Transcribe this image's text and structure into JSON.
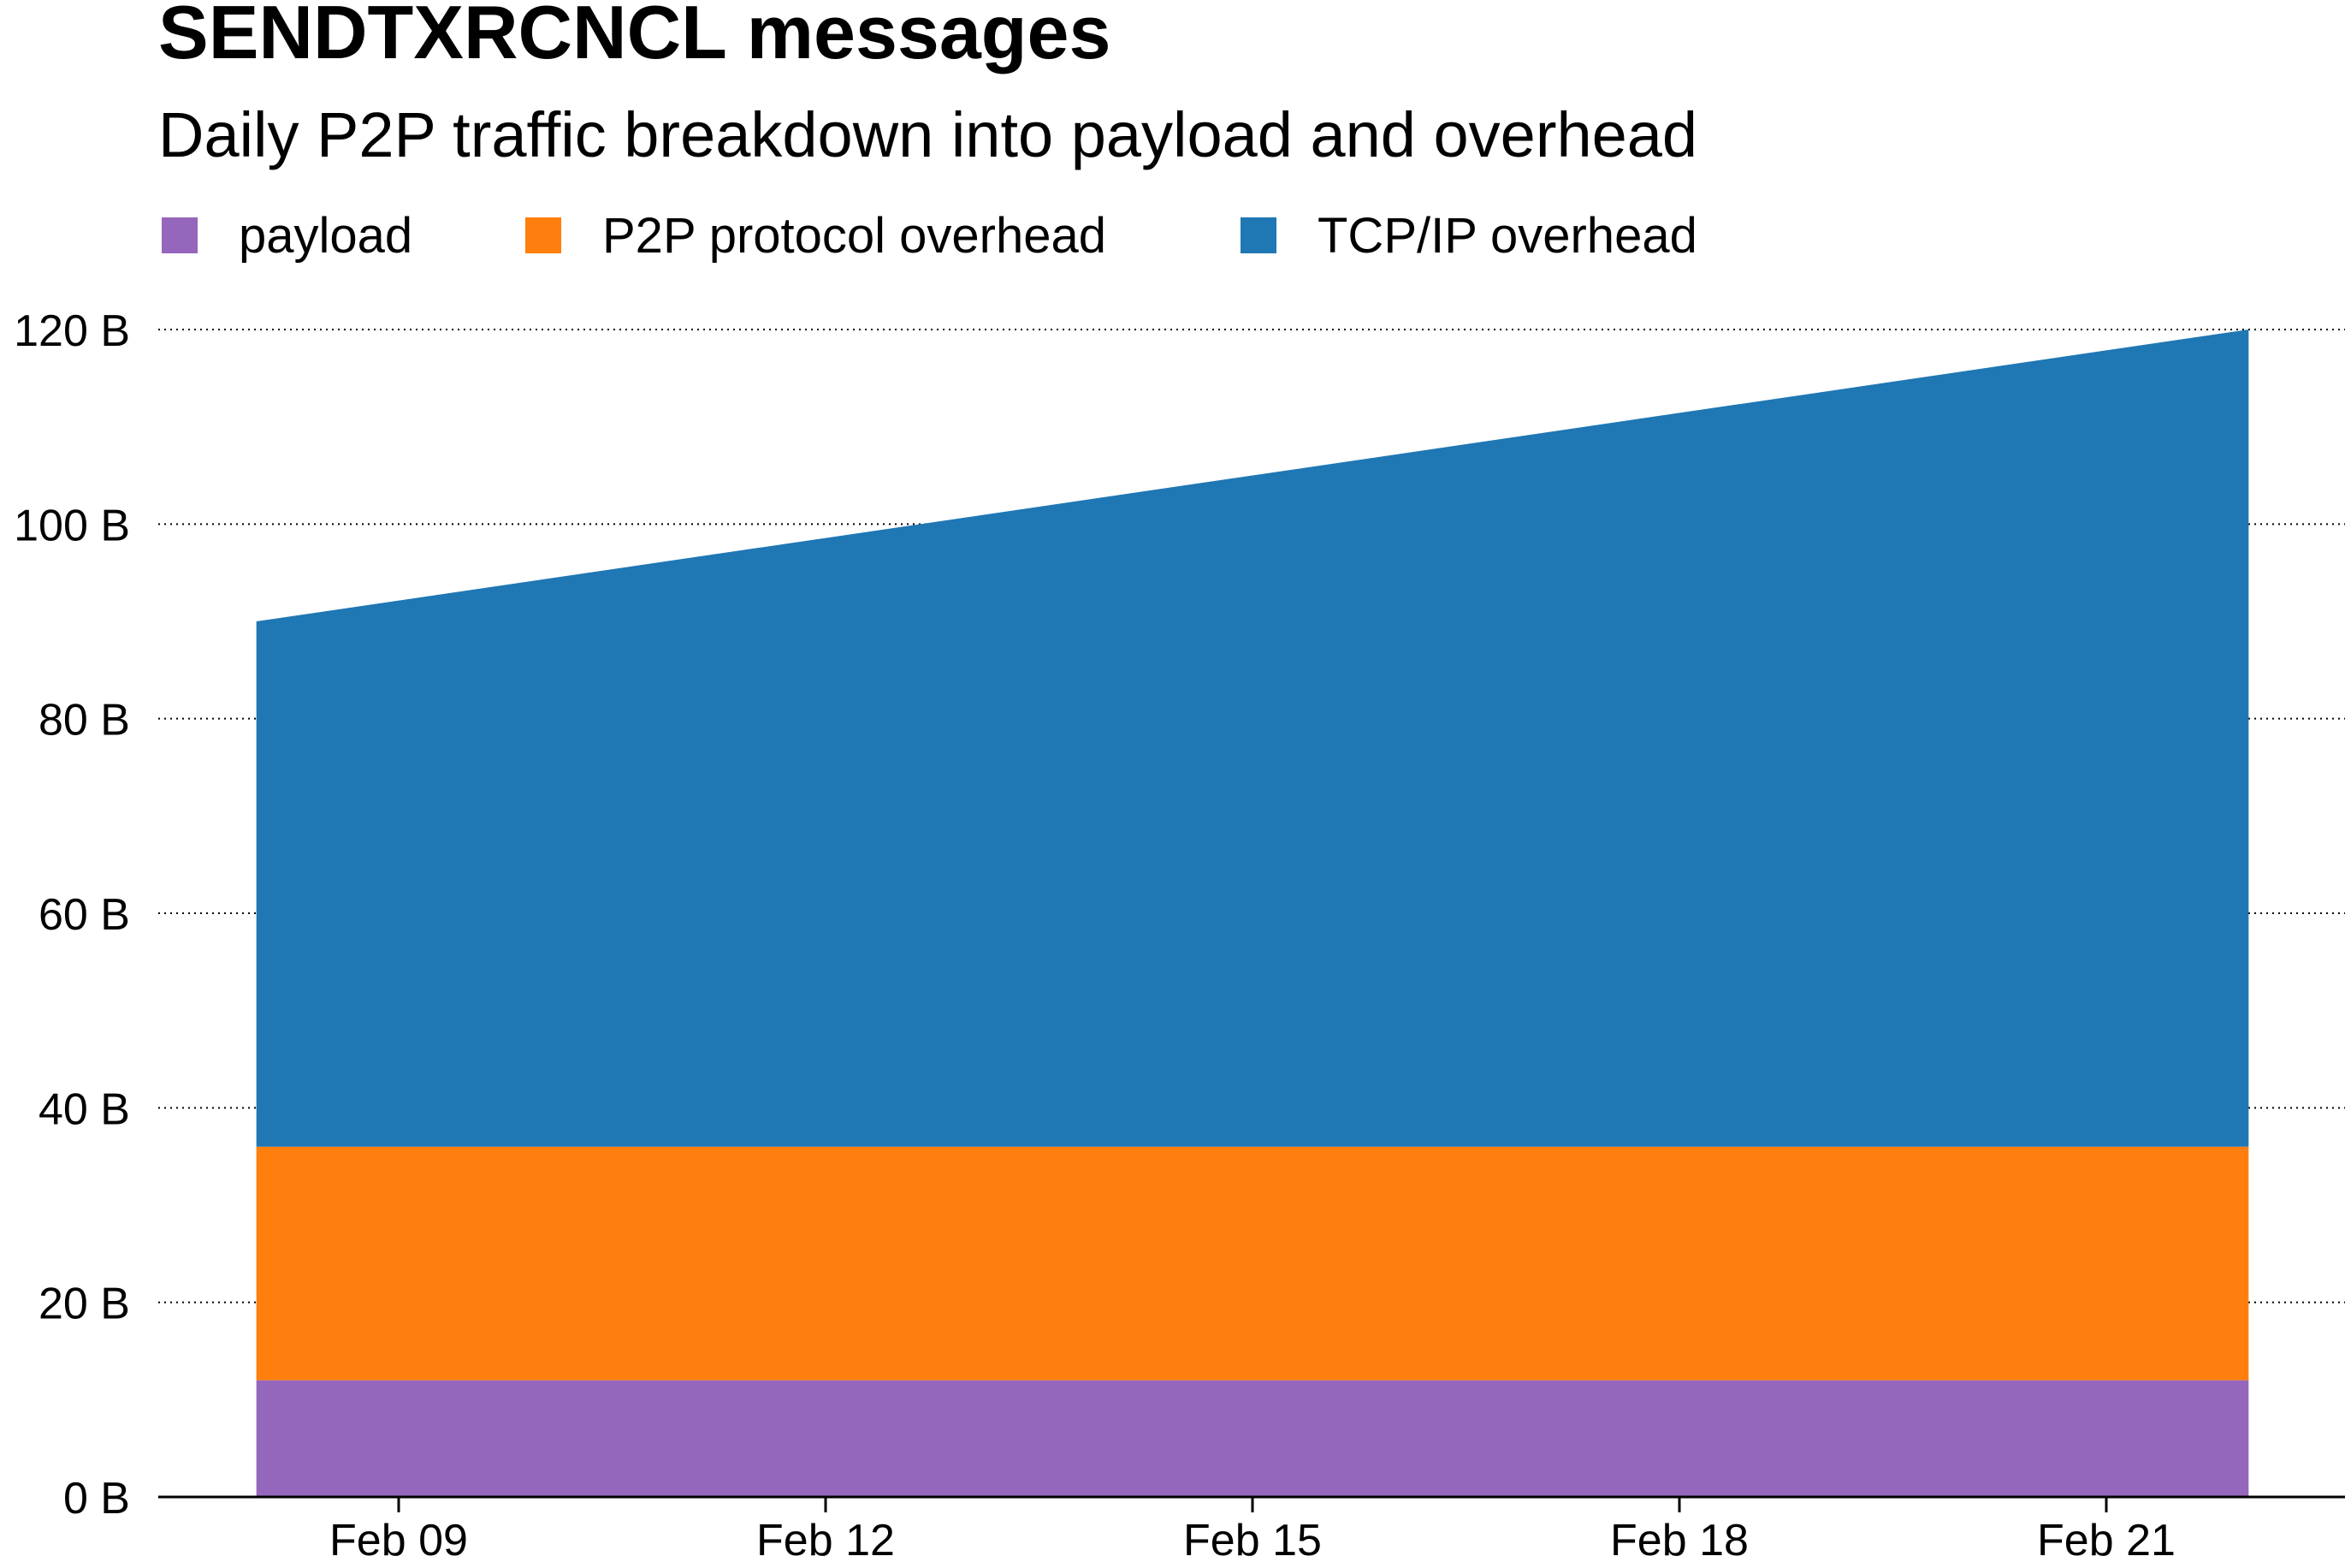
{
  "chart_data": {
    "type": "area",
    "stacked": true,
    "title": "SENDTXRCNCL messages",
    "subtitle": "Daily P2P traffic breakdown into payload and overhead",
    "xlabel": "",
    "ylabel": "",
    "x": [
      "Feb 08",
      "Feb 22"
    ],
    "x_ticks": [
      "Feb 09",
      "Feb 12",
      "Feb 15",
      "Feb 18",
      "Feb 21"
    ],
    "ylim": [
      0,
      120
    ],
    "y_ticks": [
      "0 B",
      "20 B",
      "40 B",
      "60 B",
      "80 B",
      "100 B",
      "120 B"
    ],
    "y_unit": "B",
    "grid": "horizontal dotted",
    "legend_position": "top-left",
    "series": [
      {
        "name": "payload",
        "color": "#9467bd",
        "values": [
          12,
          12
        ]
      },
      {
        "name": "P2P protocol overhead",
        "color": "#ff7f0e",
        "values": [
          24,
          24
        ]
      },
      {
        "name": "TCP/IP overhead",
        "color": "#1f77b4",
        "values": [
          54,
          84
        ]
      }
    ]
  }
}
